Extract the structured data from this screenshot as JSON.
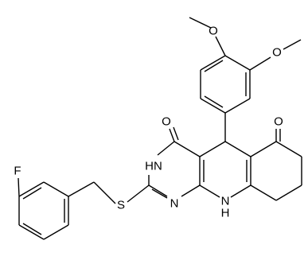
{
  "atoms": [
    {
      "label": "O"
    },
    {
      "label": "O"
    },
    {
      "label": "O"
    },
    {
      "label": "O"
    },
    {
      "label": "HN"
    },
    {
      "label": "N"
    },
    {
      "label": "N"
    },
    {
      "label": "H"
    },
    {
      "label": "S"
    },
    {
      "label": "F"
    }
  ]
}
